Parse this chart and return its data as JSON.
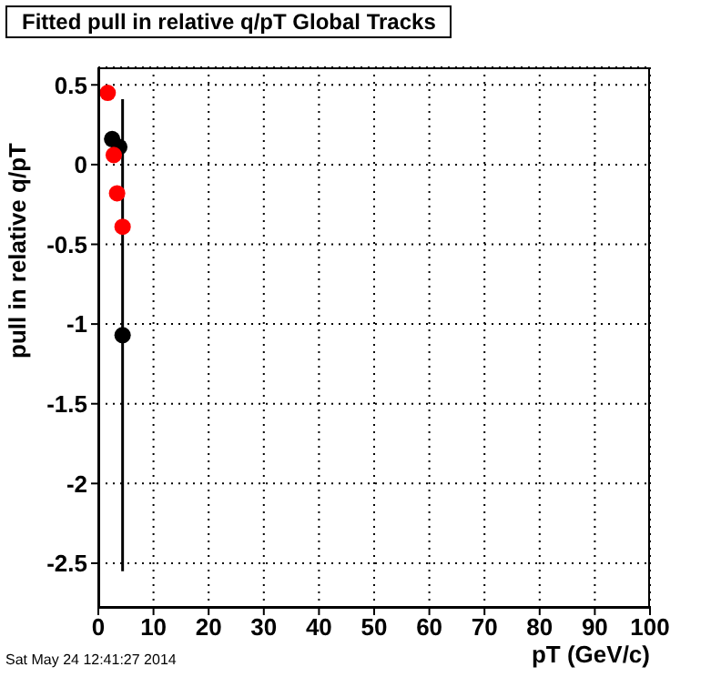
{
  "chart_data": {
    "type": "scatter",
    "title": "Fitted pull in relative q/pT  Global Tracks",
    "xlabel": "pT (GeV/c)",
    "ylabel": "pull in relative q/pT",
    "annotations": [
      "Sat May 24 12:41:27 2014"
    ],
    "series": [
      {
        "color": "#000000",
        "x": [
          2.5,
          3.8,
          4.4
        ],
        "values": [
          0.16,
          0.11,
          -1.07
        ],
        "errors": [
          null,
          null,
          1.48
        ]
      },
      {
        "color": "#ff0000",
        "x": [
          1.7,
          2.8,
          3.4,
          4.4
        ],
        "values": [
          0.45,
          0.06,
          -0.18,
          -0.39
        ]
      }
    ],
    "xlim": [
      0,
      100
    ],
    "xticks": [
      0,
      10,
      20,
      30,
      40,
      50,
      60,
      70,
      80,
      90,
      100
    ],
    "ylim": [
      -2.78,
      0.61
    ],
    "yticks": [
      -2.5,
      -2,
      -1.5,
      -1,
      -0.5,
      0,
      0.5
    ],
    "grid": true,
    "marker": "circle"
  }
}
